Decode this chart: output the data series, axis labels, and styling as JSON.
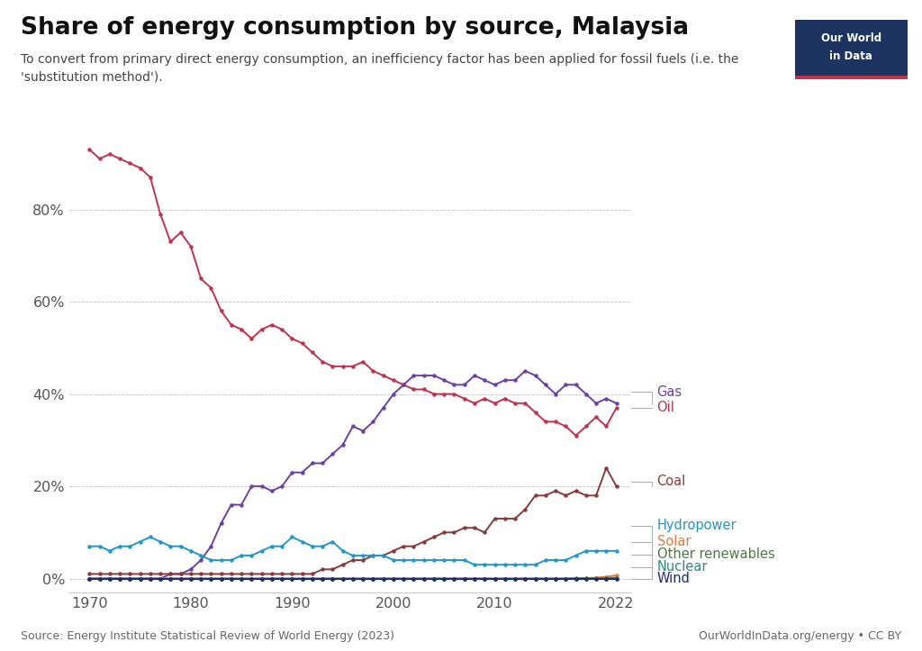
{
  "title": "Share of energy consumption by source, Malaysia",
  "subtitle": "To convert from primary direct energy consumption, an inefficiency factor has been applied for fossil fuels (i.e. the\n'substitution method').",
  "source": "Source: Energy Institute Statistical Review of World Energy (2023)",
  "url": "OurWorldInData.org/energy • CC BY",
  "years": [
    1970,
    1971,
    1972,
    1973,
    1974,
    1975,
    1976,
    1977,
    1978,
    1979,
    1980,
    1981,
    1982,
    1983,
    1984,
    1985,
    1986,
    1987,
    1988,
    1989,
    1990,
    1991,
    1992,
    1993,
    1994,
    1995,
    1996,
    1997,
    1998,
    1999,
    2000,
    2001,
    2002,
    2003,
    2004,
    2005,
    2006,
    2007,
    2008,
    2009,
    2010,
    2011,
    2012,
    2013,
    2014,
    2015,
    2016,
    2017,
    2018,
    2019,
    2020,
    2021,
    2022
  ],
  "oil": [
    93,
    91,
    92,
    91,
    90,
    89,
    87,
    79,
    73,
    75,
    72,
    65,
    63,
    58,
    55,
    54,
    52,
    54,
    55,
    54,
    52,
    51,
    49,
    47,
    46,
    46,
    46,
    47,
    45,
    44,
    43,
    42,
    41,
    41,
    40,
    40,
    40,
    39,
    38,
    39,
    38,
    39,
    38,
    38,
    36,
    34,
    34,
    33,
    31,
    33,
    35,
    33,
    37
  ],
  "gas": [
    0,
    0,
    0,
    0,
    0,
    0,
    0,
    0,
    1,
    1,
    2,
    4,
    7,
    12,
    16,
    16,
    20,
    20,
    19,
    20,
    23,
    23,
    25,
    25,
    27,
    29,
    33,
    32,
    34,
    37,
    40,
    42,
    44,
    44,
    44,
    43,
    42,
    42,
    44,
    43,
    42,
    43,
    43,
    45,
    44,
    42,
    40,
    42,
    42,
    40,
    38,
    39,
    38
  ],
  "coal": [
    1,
    1,
    1,
    1,
    1,
    1,
    1,
    1,
    1,
    1,
    1,
    1,
    1,
    1,
    1,
    1,
    1,
    1,
    1,
    1,
    1,
    1,
    1,
    2,
    2,
    3,
    4,
    4,
    5,
    5,
    6,
    7,
    7,
    8,
    9,
    10,
    10,
    11,
    11,
    10,
    13,
    13,
    13,
    15,
    18,
    18,
    19,
    18,
    19,
    18,
    18,
    24,
    20
  ],
  "hydropower": [
    7,
    7,
    6,
    7,
    7,
    8,
    9,
    8,
    7,
    7,
    6,
    5,
    4,
    4,
    4,
    5,
    5,
    6,
    7,
    7,
    9,
    8,
    7,
    7,
    8,
    6,
    5,
    5,
    5,
    5,
    4,
    4,
    4,
    4,
    4,
    4,
    4,
    4,
    3,
    3,
    3,
    3,
    3,
    3,
    3,
    4,
    4,
    4,
    5,
    6,
    6,
    6,
    6
  ],
  "solar": [
    0,
    0,
    0,
    0,
    0,
    0,
    0,
    0,
    0,
    0,
    0,
    0,
    0,
    0,
    0,
    0,
    0,
    0,
    0,
    0,
    0,
    0,
    0,
    0,
    0,
    0,
    0,
    0,
    0,
    0,
    0,
    0,
    0,
    0,
    0,
    0,
    0,
    0,
    0,
    0,
    0,
    0,
    0,
    0,
    0,
    0,
    0,
    0,
    0,
    0.1,
    0.2,
    0.4,
    0.7
  ],
  "other_renewables": [
    0,
    0,
    0,
    0,
    0,
    0,
    0,
    0,
    0,
    0,
    0,
    0,
    0,
    0,
    0,
    0,
    0,
    0,
    0,
    0,
    0,
    0,
    0,
    0,
    0,
    0,
    0,
    0,
    0,
    0,
    0,
    0,
    0,
    0,
    0,
    0,
    0,
    0,
    0,
    0,
    0,
    0,
    0,
    0,
    0,
    0,
    0,
    0,
    0.1,
    0.1,
    0.1,
    0.1,
    0.2
  ],
  "nuclear": [
    0,
    0,
    0,
    0,
    0,
    0,
    0,
    0,
    0,
    0,
    0,
    0,
    0,
    0,
    0,
    0,
    0,
    0,
    0,
    0,
    0,
    0,
    0,
    0,
    0,
    0,
    0,
    0,
    0,
    0,
    0,
    0,
    0,
    0,
    0,
    0,
    0,
    0,
    0,
    0,
    0,
    0,
    0,
    0,
    0,
    0,
    0,
    0,
    0,
    0,
    0,
    0,
    0
  ],
  "wind": [
    0,
    0,
    0,
    0,
    0,
    0,
    0,
    0,
    0,
    0,
    0,
    0,
    0,
    0,
    0,
    0,
    0,
    0,
    0,
    0,
    0,
    0,
    0,
    0,
    0,
    0,
    0,
    0,
    0,
    0,
    0,
    0,
    0,
    0,
    0,
    0,
    0,
    0,
    0,
    0,
    0,
    0,
    0,
    0,
    0,
    0,
    0,
    0,
    0,
    0,
    0,
    0,
    0
  ],
  "colors": {
    "oil": "#c0324e",
    "gas": "#6e3fa3",
    "coal": "#8b3a3a",
    "hydropower": "#2196c8",
    "solar": "#e07b39",
    "other_renewables": "#4a7c3f",
    "nuclear": "#2e8b84",
    "wind": "#1a2e6b"
  },
  "legend_labels": {
    "gas": "Gas",
    "oil": "Oil",
    "coal": "Coal",
    "hydropower": "Hydropower",
    "solar": "Solar",
    "other_renewables": "Other renewables",
    "nuclear": "Nuclear",
    "wind": "Wind"
  },
  "background_color": "#ffffff",
  "ylim": [
    -3,
    100
  ],
  "yticks": [
    0,
    20,
    40,
    60,
    80
  ],
  "ytick_labels": [
    "0%",
    "20%",
    "40%",
    "60%",
    "80%"
  ],
  "xticks": [
    1970,
    1980,
    1990,
    2000,
    2010,
    2022
  ]
}
